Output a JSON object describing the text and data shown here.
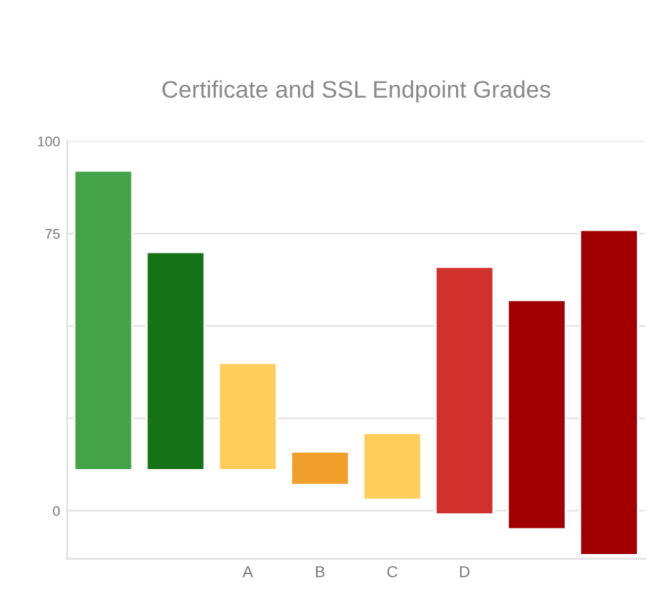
{
  "chart_data": {
    "type": "bar",
    "title": "Certificate and SSL Endpoint Grades",
    "categories": [
      null,
      null,
      "A",
      "B",
      "C",
      "D",
      null,
      null
    ],
    "values": [
      81,
      59,
      29,
      9,
      18,
      67,
      62,
      88
    ],
    "base": [
      11,
      11,
      11,
      7,
      3,
      -1,
      -5,
      -12
    ],
    "colors": [
      "#43a447",
      "#167216",
      "#ffcd5a",
      "#f0a02a",
      "#ffcd5a",
      "#d0312d",
      "#a00000",
      "#a00000"
    ],
    "ylim": [
      -13,
      100
    ],
    "yticks": [
      0,
      {
        "value": 25,
        "label": null
      },
      {
        "value": 50,
        "label": null
      },
      75,
      100
    ],
    "grid": "y"
  }
}
